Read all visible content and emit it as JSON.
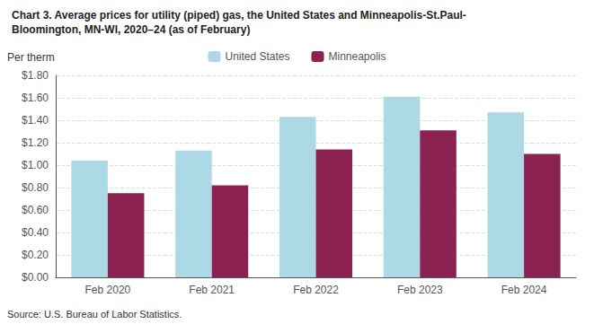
{
  "chart_data": {
    "type": "bar",
    "title": "Chart 3. Average prices for utility (piped) gas, the United States and Minneapolis-St.Paul-\nBloomington, MN-WI, 2020–24 (as of February)",
    "ylabel": "Per therm",
    "annotations": [
      "Source: U.S. Bureau of Labor Statistics."
    ],
    "categories": [
      "Feb 2020",
      "Feb 2021",
      "Feb 2022",
      "Feb 2023",
      "Feb 2024"
    ],
    "series": [
      {
        "name": "United States",
        "color": "#ADD8E6",
        "values": [
          1.04,
          1.13,
          1.43,
          1.61,
          1.47
        ]
      },
      {
        "name": "Minneapolis",
        "color": "#8B2252",
        "values": [
          0.75,
          0.82,
          1.14,
          1.31,
          1.1
        ]
      }
    ],
    "ylim": [
      0,
      1.8
    ],
    "yticks": [
      {
        "value": 0.0,
        "label": "$0.00"
      },
      {
        "value": 0.2,
        "label": "$0.20"
      },
      {
        "value": 0.4,
        "label": "$0.40"
      },
      {
        "value": 0.6,
        "label": "$0.60"
      },
      {
        "value": 0.8,
        "label": "$0.80"
      },
      {
        "value": 1.0,
        "label": "$1.00"
      },
      {
        "value": 1.2,
        "label": "$1.20"
      },
      {
        "value": 1.4,
        "label": "$1.40"
      },
      {
        "value": 1.6,
        "label": "$1.60"
      },
      {
        "value": 1.8,
        "label": "$1.80"
      }
    ],
    "grid": true,
    "legend": "top"
  }
}
